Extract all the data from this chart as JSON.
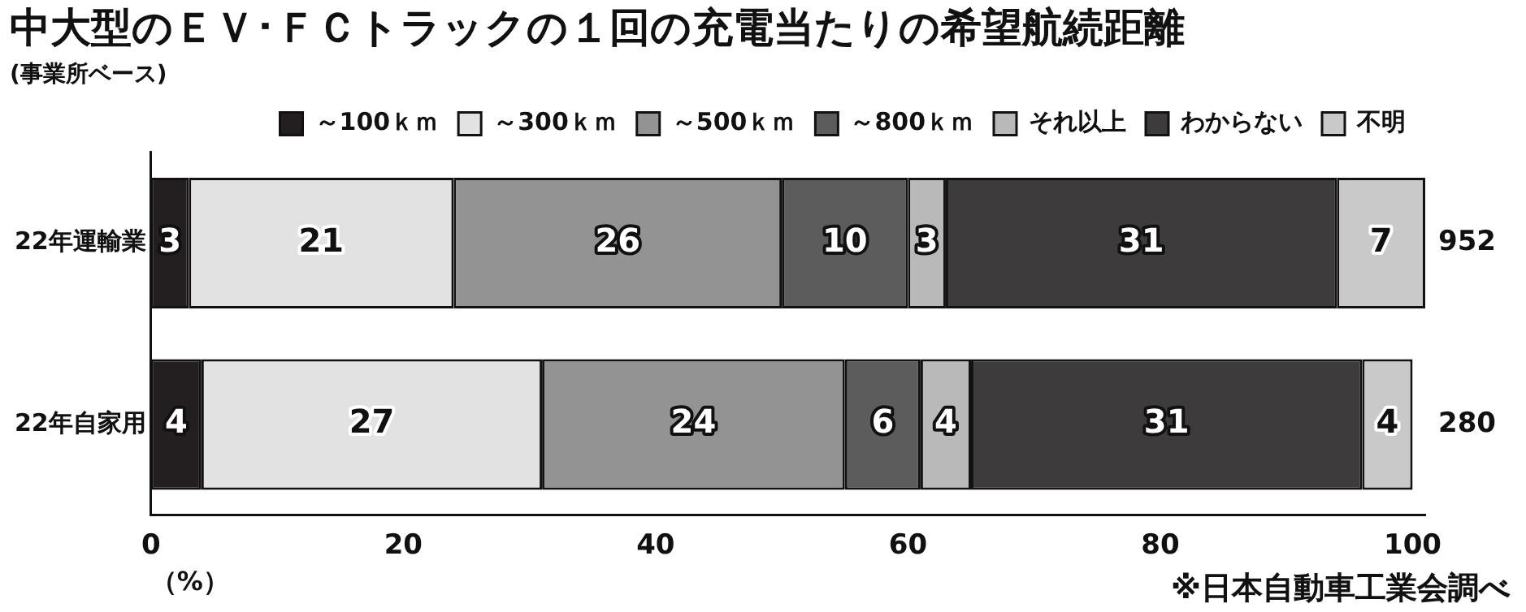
{
  "chart_data": {
    "type": "bar",
    "orientation": "horizontal",
    "stacked": true,
    "title": "中大型のＥＶ･ＦＣトラックの１回の充電当たりの希望航続距離",
    "subtitle": "(事業所ベース)",
    "xlabel": "（%）",
    "categories": [
      "22年運輸業",
      "22年自家用"
    ],
    "series": [
      {
        "name": "～100ｋｍ",
        "color": "#231f20",
        "values": [
          3,
          4
        ],
        "value_labels": [
          "3",
          "4"
        ]
      },
      {
        "name": "～300ｋｍ",
        "color": "#e2e2e2",
        "values": [
          21,
          27
        ],
        "value_labels": [
          "21",
          "27"
        ]
      },
      {
        "name": "～500ｋｍ",
        "color": "#939393",
        "values": [
          26,
          24
        ],
        "value_labels": [
          "26",
          "24"
        ]
      },
      {
        "name": "～800ｋｍ",
        "color": "#5c5c5c",
        "values": [
          10,
          6
        ],
        "value_labels": [
          "10",
          "6"
        ]
      },
      {
        "name": "それ以上",
        "color": "#b9b9b9",
        "values": [
          3,
          4
        ],
        "value_labels": [
          "3",
          "4"
        ]
      },
      {
        "name": "わからない",
        "color": "#3d3b3c",
        "values": [
          31,
          31
        ],
        "value_labels": [
          "31",
          "31"
        ]
      },
      {
        "name": "不明",
        "color": "#c9c9c9",
        "values": [
          7,
          4
        ],
        "value_labels": [
          "7",
          "4"
        ]
      }
    ],
    "xlim": [
      0,
      101
    ],
    "xticks": [
      0,
      20,
      40,
      60,
      80,
      100
    ],
    "grid": false,
    "legend": "top",
    "annotations": [
      "952",
      "280",
      "※日本自動車工業会調べ"
    ]
  }
}
